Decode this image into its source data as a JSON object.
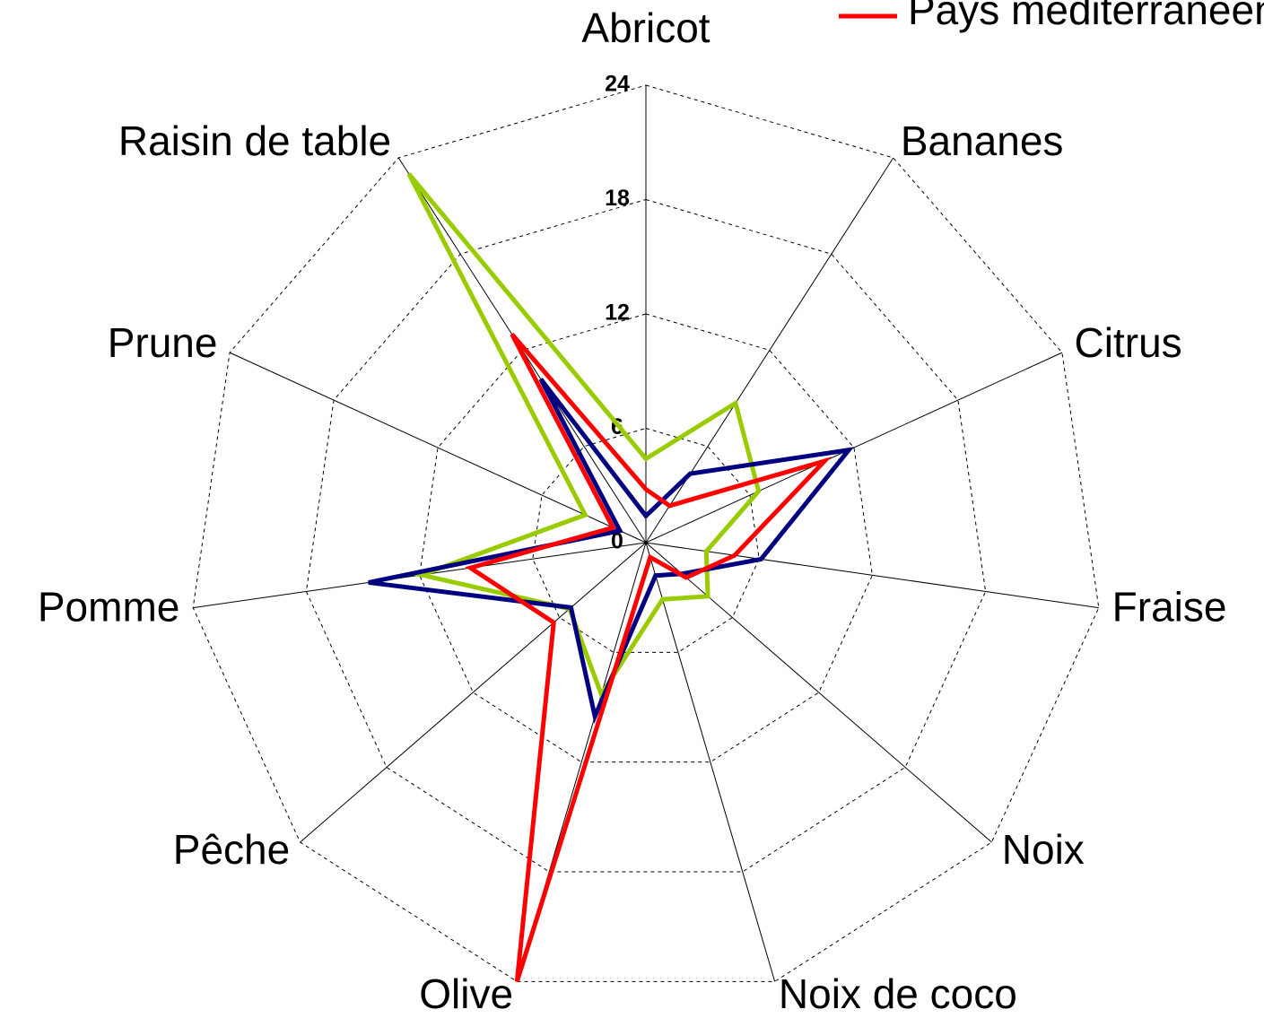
{
  "chart_data": {
    "type": "radar",
    "categories": [
      "Abricot",
      "Bananes",
      "Citrus",
      "Fraise",
      "Noix",
      "Noix de coco",
      "Olive",
      "Pêche",
      "Pomme",
      "Prune",
      "Raisin de table"
    ],
    "series": [
      {
        "color": "#99cc00",
        "values": [
          4.4,
          8.7,
          6.5,
          3.2,
          4.3,
          3.1,
          8.3,
          5.3,
          11.9,
          3.5,
          23
        ]
      },
      {
        "color": "#000080",
        "values": [
          1.4,
          4.3,
          11.7,
          6.1,
          2.5,
          1.8,
          9.5,
          5.2,
          14.7,
          1.5,
          10.2
        ]
      },
      {
        "name": "Pays méditerranéens",
        "color": "#ff0000",
        "values": [
          2.8,
          2.3,
          10.3,
          4.7,
          2.8,
          0.8,
          24,
          6.4,
          9.3,
          1.9,
          13
        ]
      }
    ],
    "ylim": [
      0,
      24
    ],
    "yticks": [
      0,
      6,
      12,
      18,
      24
    ],
    "grid": true
  }
}
